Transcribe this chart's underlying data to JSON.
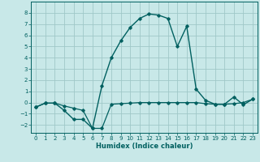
{
  "title": "",
  "xlabel": "Humidex (Indice chaleur)",
  "bg_color": "#c8e8e8",
  "grid_color": "#a0c8c8",
  "line_color": "#006060",
  "xlim": [
    -0.5,
    23.5
  ],
  "ylim": [
    -2.7,
    9.0
  ],
  "xticks": [
    0,
    1,
    2,
    3,
    4,
    5,
    6,
    7,
    8,
    9,
    10,
    11,
    12,
    13,
    14,
    15,
    16,
    17,
    18,
    19,
    20,
    21,
    22,
    23
  ],
  "yticks": [
    -2,
    -1,
    0,
    1,
    2,
    3,
    4,
    5,
    6,
    7,
    8
  ],
  "line1_x": [
    0,
    1,
    2,
    3,
    4,
    5,
    6,
    7,
    8,
    9,
    10,
    11,
    12,
    13,
    14,
    15,
    16,
    17,
    18,
    19,
    20,
    21,
    22,
    23
  ],
  "line1_y": [
    -0.4,
    -0.05,
    -0.05,
    -0.3,
    -0.5,
    -0.7,
    -2.3,
    -2.3,
    -0.15,
    -0.1,
    -0.05,
    0.0,
    0.0,
    0.0,
    0.0,
    0.0,
    0.0,
    0.0,
    -0.1,
    -0.15,
    -0.15,
    -0.1,
    0.0,
    0.3
  ],
  "line2_x": [
    0,
    1,
    2,
    3,
    4,
    5,
    6,
    7,
    8,
    9,
    10,
    11,
    12,
    13,
    14,
    15,
    16,
    17,
    18,
    19,
    20,
    21,
    22,
    23
  ],
  "line2_y": [
    -0.4,
    -0.05,
    -0.05,
    -0.7,
    -1.5,
    -1.5,
    -2.3,
    1.5,
    4.0,
    5.5,
    6.7,
    7.5,
    7.9,
    7.8,
    7.5,
    5.0,
    6.8,
    1.2,
    0.2,
    -0.15,
    -0.15,
    0.5,
    -0.2,
    0.3
  ]
}
